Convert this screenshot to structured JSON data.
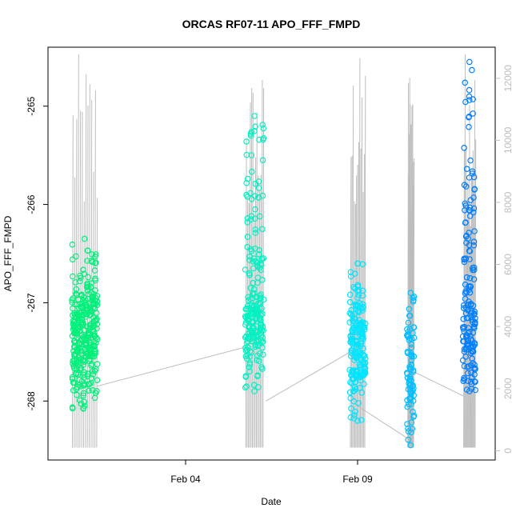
{
  "chart_data": {
    "type": "scatter",
    "title": "ORCAS RF07-11 APO_FFF_FMPD",
    "xlabel": "Date",
    "ylabel": "APO_FFF_FMPD",
    "xlim": [
      "2016-01-31",
      "2016-02-13"
    ],
    "ylim": [
      -268.6,
      -264.4
    ],
    "y2lim": [
      -300,
      13000
    ],
    "x_ticks": [
      {
        "date": "2016-02-04",
        "label": "Feb 04"
      },
      {
        "date": "2016-02-09",
        "label": "Feb 09"
      }
    ],
    "y_ticks": [
      -265,
      -266,
      -267,
      -268
    ],
    "y_tick_labels": [
      "-265",
      "-266",
      "-267",
      "-268"
    ],
    "y2_ticks": [
      0,
      2000,
      4000,
      6000,
      8000,
      10000,
      12000
    ],
    "y2_tick_labels": [
      "0",
      "2000",
      "4000",
      "6000",
      "8000",
      "10000",
      "12000"
    ],
    "y2_color": "#bdbdbd",
    "grid": false,
    "legend": "none",
    "connector_color": "#bdbdbd",
    "series": [
      {
        "color": "#00f07a",
        "x_start": "2016-01-31T17:00",
        "x_end": "2016-02-01T10:00",
        "y_min": -268.05,
        "y_max": -266.35,
        "y_center": -267.3,
        "bands": [
          [
            -268.1,
            -266.4
          ],
          [
            -267.9,
            -266.9
          ],
          [
            -267.6,
            -267.0
          ]
        ],
        "alt_max": 12800,
        "alt_min": 100
      },
      {
        "color": "#00f2c3",
        "x_start": "2016-02-05T18:00",
        "x_end": "2016-02-06T06:00",
        "y_min": -267.9,
        "y_max": -265.1,
        "y_center": -267.2,
        "bands": [
          [
            -267.9,
            -266.5
          ],
          [
            -267.6,
            -265.1
          ],
          [
            -267.4,
            -266.9
          ]
        ],
        "alt_max": 12400,
        "alt_min": 100
      },
      {
        "color": "#00e5ff",
        "x_start": "2016-02-08T19:00",
        "x_end": "2016-02-09T05:00",
        "y_min": -268.2,
        "y_max": -266.6,
        "y_center": -267.5,
        "bands": [
          [
            -268.2,
            -266.6
          ],
          [
            -268.0,
            -267.0
          ],
          [
            -267.8,
            -267.2
          ]
        ],
        "alt_max": 12800,
        "alt_min": 100
      },
      {
        "color": "#00bfff",
        "x_start": "2016-02-10T11:00",
        "x_end": "2016-02-10T15:00",
        "y_min": -268.45,
        "y_max": -266.9,
        "y_center": -267.8,
        "bands": [
          [
            -268.45,
            -267.2
          ],
          [
            -268.2,
            -266.9
          ],
          [
            -268.0,
            -267.5
          ]
        ],
        "alt_max": 12900,
        "alt_min": 100
      },
      {
        "color": "#007fff",
        "x_start": "2016-02-12T02:00",
        "x_end": "2016-02-12T10:00",
        "y_min": -267.9,
        "y_max": -264.55,
        "y_center": -266.8,
        "bands": [
          [
            -267.9,
            -267.0
          ],
          [
            -267.7,
            -264.6
          ],
          [
            -267.5,
            -265.5
          ]
        ],
        "alt_max": 13100,
        "alt_min": 100
      }
    ],
    "connectors": [
      {
        "x0": "2016-02-01T10:00",
        "y0": -267.85,
        "x1": "2016-02-05T18:00",
        "y1": -267.45
      },
      {
        "x0": "2016-02-06T08:00",
        "y0": -268.0,
        "x1": "2016-02-08T19:00",
        "y1": -267.5
      },
      {
        "x0": "2016-02-09T00:00",
        "y0": -268.05,
        "x1": "2016-02-10T13:00",
        "y1": -268.4
      },
      {
        "x0": "2016-02-10T15:00",
        "y0": -267.7,
        "x1": "2016-02-12T02:00",
        "y1": -267.95
      }
    ]
  }
}
